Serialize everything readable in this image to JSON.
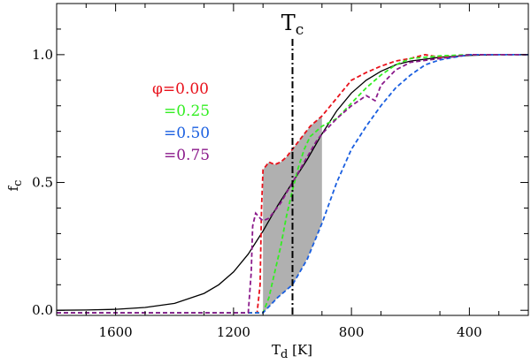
{
  "chart_data": {
    "type": "line",
    "xlabel": {
      "main": "T",
      "sub": "d",
      "unit": " [K]"
    },
    "ylabel": {
      "main": "f",
      "sub": "c"
    },
    "xlim": [
      1800,
      200
    ],
    "ylim": [
      -0.02,
      1.2
    ],
    "x_ticks": [
      1600,
      1200,
      800,
      400
    ],
    "x_tick_labels": [
      "1600",
      "1200",
      "800",
      "400"
    ],
    "y_ticks": [
      0.0,
      0.5,
      1.0
    ],
    "y_tick_labels": [
      "0.0",
      "0.5",
      "1.0"
    ],
    "annotation": {
      "main": "T",
      "sub": "c",
      "x": 1000
    },
    "shaded_region": {
      "x": [
        1100,
        1080,
        1060,
        1040,
        1020,
        1000,
        980,
        960,
        940,
        920,
        900
      ],
      "color": "#b0b0b0"
    },
    "series": [
      {
        "name": "model",
        "label": "",
        "color": "#000000",
        "dash": "solid",
        "x": [
          1800,
          1700,
          1600,
          1500,
          1400,
          1300,
          1250,
          1200,
          1150,
          1100,
          1050,
          1000,
          950,
          900,
          850,
          800,
          750,
          700,
          650,
          600,
          500,
          400,
          300,
          200
        ],
        "y": [
          0.0,
          0.001,
          0.004,
          0.011,
          0.027,
          0.066,
          0.1,
          0.15,
          0.22,
          0.31,
          0.41,
          0.5,
          0.59,
          0.69,
          0.78,
          0.85,
          0.9,
          0.935,
          0.96,
          0.975,
          0.99,
          0.997,
          1.0,
          1.0
        ]
      },
      {
        "name": "phi-0.00",
        "label": "φ=0.00",
        "color": "#e8101a",
        "dash": "dashed",
        "x": [
          1800,
          1600,
          1400,
          1200,
          1120,
          1110,
          1105,
          1100,
          1080,
          1060,
          1040,
          1020,
          1000,
          980,
          960,
          940,
          920,
          900,
          850,
          800,
          750,
          700,
          650,
          600,
          550,
          500,
          400,
          300,
          200
        ],
        "y": [
          -0.01,
          -0.01,
          -0.01,
          -0.01,
          -0.01,
          0.1,
          0.4,
          0.55,
          0.58,
          0.57,
          0.58,
          0.6,
          0.63,
          0.66,
          0.69,
          0.72,
          0.74,
          0.76,
          0.83,
          0.9,
          0.93,
          0.955,
          0.975,
          0.985,
          1.0,
          0.99,
          1.0,
          1.0,
          1.0
        ]
      },
      {
        "name": "phi-0.25",
        "label": "=0.25",
        "color": "#33ee22",
        "dash": "dashed",
        "x": [
          1800,
          1600,
          1400,
          1200,
          1100,
          1080,
          1060,
          1040,
          1020,
          1000,
          980,
          960,
          940,
          920,
          900,
          850,
          800,
          750,
          700,
          650,
          600,
          550,
          500,
          400,
          300,
          200
        ],
        "y": [
          -0.01,
          -0.01,
          -0.01,
          -0.01,
          -0.01,
          0.05,
          0.15,
          0.25,
          0.37,
          0.47,
          0.56,
          0.63,
          0.68,
          0.7,
          0.72,
          0.75,
          0.81,
          0.87,
          0.92,
          0.96,
          0.985,
          0.99,
          0.995,
          1.0,
          1.0,
          1.0
        ]
      },
      {
        "name": "phi-0.50",
        "label": "=0.50",
        "color": "#1a5fe0",
        "dash": "dashed",
        "x": [
          1800,
          1600,
          1400,
          1200,
          1100,
          1050,
          1000,
          950,
          900,
          850,
          800,
          750,
          700,
          650,
          600,
          550,
          500,
          450,
          400,
          300,
          200
        ],
        "y": [
          -0.01,
          -0.01,
          -0.01,
          -0.01,
          -0.01,
          0.05,
          0.1,
          0.2,
          0.34,
          0.5,
          0.63,
          0.72,
          0.8,
          0.87,
          0.92,
          0.96,
          0.98,
          0.99,
          1.0,
          1.0,
          1.0
        ]
      },
      {
        "name": "phi-0.75",
        "label": "=0.75",
        "color": "#8b1a8b",
        "dash": "dashed",
        "x": [
          1800,
          1600,
          1400,
          1200,
          1150,
          1140,
          1135,
          1125,
          1110,
          1100,
          1080,
          1060,
          1040,
          1020,
          1000,
          980,
          960,
          940,
          920,
          900,
          850,
          800,
          750,
          720,
          700,
          650,
          600,
          500,
          400,
          300,
          200
        ],
        "y": [
          -0.01,
          -0.01,
          -0.01,
          -0.01,
          -0.01,
          0.15,
          0.33,
          0.38,
          0.36,
          0.35,
          0.36,
          0.39,
          0.42,
          0.46,
          0.5,
          0.54,
          0.58,
          0.62,
          0.66,
          0.69,
          0.75,
          0.8,
          0.84,
          0.82,
          0.88,
          0.94,
          0.97,
          0.985,
          1.0,
          1.0,
          1.0
        ]
      }
    ]
  }
}
